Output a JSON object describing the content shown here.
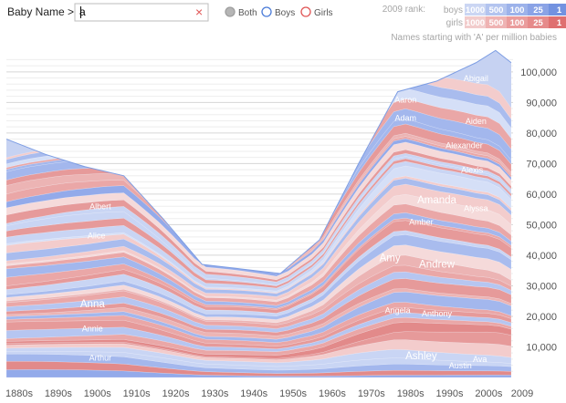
{
  "search": {
    "label": "Baby Name >",
    "value": "a",
    "clear_glyph": "×"
  },
  "filters": [
    {
      "label": "Both",
      "color": "#9e9e9e",
      "selected": true
    },
    {
      "label": "Boys",
      "color": "#4a7bd8",
      "selected": false
    },
    {
      "label": "Girls",
      "color": "#e05555",
      "selected": false
    }
  ],
  "rank_legend": {
    "title": "2009 rank:",
    "rows": [
      {
        "label": "boys",
        "cells": [
          "1000",
          "500",
          "100",
          "25",
          "1"
        ],
        "colors": [
          "#cbd6f3",
          "#b3c4ef",
          "#9cb2ea",
          "#8aa3e6",
          "#7292e0"
        ]
      },
      {
        "label": "girls",
        "cells": [
          "1000",
          "500",
          "100",
          "25",
          "1"
        ],
        "colors": [
          "#f2cccc",
          "#efb3b3",
          "#ea9c9c",
          "#e68a8a",
          "#df7070"
        ]
      }
    ]
  },
  "subtitle": "Names starting with 'A' per million babies",
  "chart_data": {
    "type": "area",
    "x": [
      "1880s",
      "1890s",
      "1900s",
      "1910s",
      "1920s",
      "1930s",
      "1940s",
      "1950s",
      "1960s",
      "1970s",
      "1980s",
      "1990s",
      "2000s",
      "2009"
    ],
    "x_positions": [
      1880,
      1890,
      1900,
      1910,
      1920,
      1930,
      1940,
      1950,
      1960,
      1970,
      1980,
      1990,
      2000,
      2009
    ],
    "total": [
      [
        1880,
        78000
      ],
      [
        1890,
        73000
      ],
      [
        1900,
        69000
      ],
      [
        1910,
        66000
      ],
      [
        1920,
        52000
      ],
      [
        1930,
        37000
      ],
      [
        1940,
        35500
      ],
      [
        1950,
        34000
      ],
      [
        1960,
        45000
      ],
      [
        1970,
        70000
      ],
      [
        1980,
        93500
      ],
      [
        1990,
        97000
      ],
      [
        2000,
        103000
      ],
      [
        2005,
        107000
      ],
      [
        2009,
        103000
      ]
    ],
    "y_ticks": [
      10000,
      20000,
      30000,
      40000,
      50000,
      60000,
      70000,
      80000,
      90000,
      100000
    ],
    "ylim": [
      0,
      108000
    ],
    "xlim": [
      1880,
      2009
    ],
    "labels": [
      {
        "text": "Arthur",
        "x": 1904,
        "y": 5500,
        "color": "boy"
      },
      {
        "text": "Annie",
        "x": 1902,
        "y": 15000,
        "color": "girl"
      },
      {
        "text": "Anna",
        "x": 1902,
        "y": 23000,
        "color": "girl"
      },
      {
        "text": "Alice",
        "x": 1903,
        "y": 45500,
        "color": "girl"
      },
      {
        "text": "Albert",
        "x": 1904,
        "y": 55000,
        "color": "boy"
      },
      {
        "text": "Amy",
        "x": 1978,
        "y": 38000,
        "color": "girl"
      },
      {
        "text": "Angela",
        "x": 1980,
        "y": 21000,
        "color": "girl"
      },
      {
        "text": "Ashley",
        "x": 1986,
        "y": 6000,
        "color": "girl"
      },
      {
        "text": "Austin",
        "x": 1996,
        "y": 3000,
        "color": "boy"
      },
      {
        "text": "Ava",
        "x": 2001,
        "y": 5000,
        "color": "boy"
      },
      {
        "text": "Anthony",
        "x": 1990,
        "y": 20000,
        "color": "boy"
      },
      {
        "text": "Andrew",
        "x": 1990,
        "y": 36000,
        "color": "boy"
      },
      {
        "text": "Amber",
        "x": 1986,
        "y": 50000,
        "color": "girl"
      },
      {
        "text": "Amanda",
        "x": 1990,
        "y": 57000,
        "color": "girl"
      },
      {
        "text": "Alyssa",
        "x": 2000,
        "y": 54500,
        "color": "girl"
      },
      {
        "text": "Alexis",
        "x": 1999,
        "y": 67000,
        "color": "girl"
      },
      {
        "text": "Alexander",
        "x": 1997,
        "y": 75000,
        "color": "boy"
      },
      {
        "text": "Aiden",
        "x": 2000,
        "y": 83000,
        "color": "boy"
      },
      {
        "text": "Adam",
        "x": 1982,
        "y": 84000,
        "color": "boy"
      },
      {
        "text": "Aaron",
        "x": 1982,
        "y": 90000,
        "color": "boy"
      },
      {
        "text": "Abigail",
        "x": 2000,
        "y": 97000,
        "color": "girl"
      }
    ],
    "colors": {
      "boy_shades": [
        "#c9d5f4",
        "#b6c6f1",
        "#a3b7ed",
        "#93aaea",
        "#d5dff7",
        "#a9bcee"
      ],
      "girl_shades": [
        "#f3cccc",
        "#ecb4b4",
        "#e69a9a",
        "#e28a8a",
        "#f5dada",
        "#eaa7a7"
      ],
      "grid": "#e4e4e4",
      "tick_text": "#555555"
    }
  }
}
